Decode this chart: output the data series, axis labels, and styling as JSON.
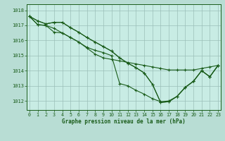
{
  "title": "Graphe pression niveau de la mer (hPa)",
  "bg_color": "#b8ddd4",
  "plot_bg_color": "#c8ece4",
  "grid_color": "#9bbfb8",
  "line_color": "#1a5c1a",
  "text_color": "#1a5c1a",
  "spine_color": "#1a5c1a",
  "xlim": [
    -0.3,
    23.3
  ],
  "ylim": [
    1011.4,
    1018.4
  ],
  "yticks": [
    1012,
    1013,
    1014,
    1015,
    1016,
    1017,
    1018
  ],
  "xticks": [
    0,
    1,
    2,
    3,
    4,
    5,
    6,
    7,
    8,
    9,
    10,
    11,
    12,
    13,
    14,
    15,
    16,
    17,
    18,
    19,
    20,
    21,
    22,
    23
  ],
  "series": [
    [
      1017.6,
      1017.3,
      1017.1,
      1017.2,
      1017.2,
      1016.85,
      1016.55,
      1016.2,
      1015.9,
      1015.6,
      1015.3,
      1014.85,
      1014.5,
      1014.2,
      1013.85,
      1013.1,
      1011.9,
      1011.95,
      1012.3,
      1012.9,
      1013.3,
      1014.0,
      1013.6,
      1014.35
    ],
    [
      1017.6,
      1017.05,
      1017.0,
      1016.55,
      1016.5,
      1016.2,
      1015.9,
      1015.55,
      1015.35,
      1015.2,
      1015.0,
      1013.15,
      1013.0,
      1012.7,
      1012.45,
      1012.15,
      1011.95,
      1012.0,
      1012.3,
      1012.9,
      1013.3,
      1014.0,
      1013.6,
      1014.35
    ],
    [
      1017.6,
      1017.05,
      1017.0,
      1016.8,
      1016.5,
      1016.2,
      1015.9,
      1015.5,
      1015.1,
      1014.85,
      1014.75,
      1014.65,
      1014.55,
      1014.45,
      1014.35,
      1014.25,
      1014.15,
      1014.05,
      1014.05,
      1014.05,
      1014.05,
      1014.15,
      1014.25,
      1014.35
    ],
    [
      1017.6,
      1017.3,
      1017.1,
      1017.2,
      1017.2,
      1016.85,
      1016.55,
      1016.2,
      1015.9,
      1015.6,
      1015.3,
      1014.85,
      1014.5,
      1014.2,
      1013.85,
      1013.1,
      1011.9,
      1011.95,
      1012.3,
      1012.9,
      1013.3,
      1014.0,
      1013.6,
      1014.35
    ]
  ]
}
